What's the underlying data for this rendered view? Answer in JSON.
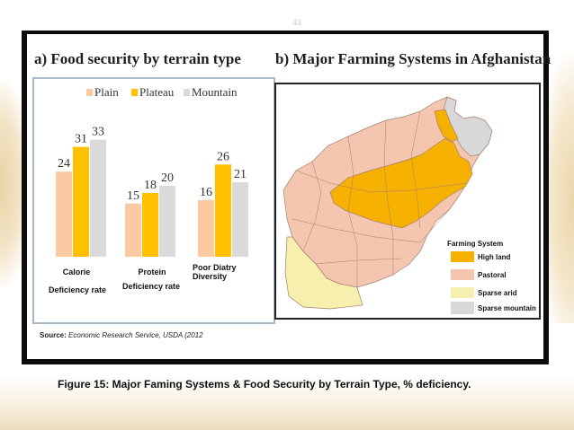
{
  "page_number": "43",
  "caption": "Figure 15: Major Faming Systems & Food Security by Terrain Type, % deficiency.",
  "panel_a": {
    "title": "a) Food security by terrain type",
    "source_label": "Source:",
    "source_text": "Economic Research Service, USDA (2012"
  },
  "panel_b": {
    "title": "b) Major Farming Systems in Afghanistan",
    "legend_title": "Farming System",
    "legend": [
      {
        "label": "High land",
        "color": "#f5b000"
      },
      {
        "label": "Pastoral",
        "color": "#f4c6b0"
      },
      {
        "label": "Sparse arid",
        "color": "#f6efad"
      },
      {
        "label": "Sparse mountain",
        "color": "#d8d8d8"
      }
    ]
  },
  "chart_data": {
    "type": "bar",
    "title": "a) Food security by terrain type",
    "categories": [
      "Calorie Deficiency rate",
      "Protein Deficiency rate",
      "Poor Diatry Diversity"
    ],
    "category_lines": [
      [
        "Calorie",
        "Deficiency rate"
      ],
      [
        "Protein",
        "Deficiency rate"
      ],
      [
        "Poor Diatry",
        "Diversity"
      ]
    ],
    "series": [
      {
        "name": "Plain",
        "values": [
          24,
          15,
          16
        ],
        "color": "#fbc9a2"
      },
      {
        "name": "Plateau",
        "values": [
          31,
          18,
          26
        ],
        "color": "#ffc000"
      },
      {
        "name": "Mountain",
        "values": [
          33,
          20,
          21
        ],
        "color": "#dadada"
      }
    ],
    "ylim": [
      0,
      40
    ],
    "legend_position": "top",
    "grid": false
  }
}
